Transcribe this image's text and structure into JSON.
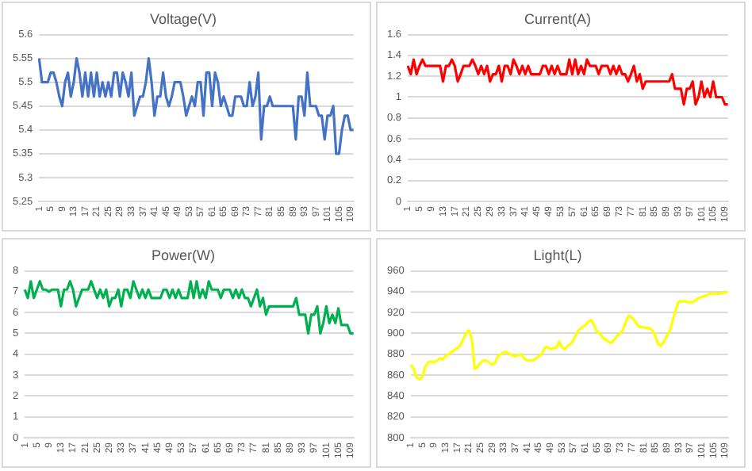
{
  "chart_data": [
    {
      "type": "line",
      "title": "Voltage(V)",
      "color": "#4472c4",
      "grid": "y",
      "ylim": [
        5.25,
        5.6
      ],
      "yticks": [
        5.25,
        5.3,
        5.35,
        5.4,
        5.45,
        5.5,
        5.55,
        5.6
      ],
      "categories": [
        "1",
        null,
        null,
        null,
        "5",
        null,
        null,
        null,
        "9",
        null,
        null,
        null,
        "13",
        null,
        null,
        null,
        "17",
        null,
        null,
        null,
        "21",
        null,
        null,
        null,
        "25",
        null,
        null,
        null,
        "29",
        null,
        null,
        null,
        "33",
        null,
        null,
        null,
        "37",
        null,
        null,
        null,
        "41",
        null,
        null,
        null,
        "45",
        null,
        null,
        null,
        "49",
        null,
        null,
        null,
        "53",
        null,
        null,
        null,
        "57",
        null,
        null,
        null,
        "61",
        null,
        null,
        null,
        "65",
        null,
        null,
        null,
        "69",
        null,
        null,
        null,
        "73",
        null,
        null,
        null,
        "77",
        null,
        null,
        null,
        "81",
        null,
        null,
        null,
        "85",
        null,
        null,
        null,
        "89",
        null,
        null,
        null,
        "93",
        null,
        null,
        null,
        "97",
        null,
        null,
        null,
        "101",
        null,
        null,
        null,
        "105",
        null,
        null,
        null,
        "109",
        null
      ],
      "values": [
        5.55,
        5.5,
        5.5,
        5.5,
        5.52,
        5.52,
        5.5,
        5.47,
        5.45,
        5.5,
        5.52,
        5.47,
        5.5,
        5.55,
        5.52,
        5.47,
        5.52,
        5.47,
        5.52,
        5.47,
        5.52,
        5.47,
        5.5,
        5.47,
        5.5,
        5.47,
        5.52,
        5.52,
        5.47,
        5.52,
        5.5,
        5.47,
        5.52,
        5.43,
        5.45,
        5.47,
        5.47,
        5.5,
        5.55,
        5.5,
        5.43,
        5.47,
        5.47,
        5.52,
        5.47,
        5.45,
        5.47,
        5.5,
        5.5,
        5.5,
        5.47,
        5.43,
        5.45,
        5.47,
        5.45,
        5.5,
        5.5,
        5.43,
        5.52,
        5.52,
        5.45,
        5.52,
        5.5,
        5.45,
        5.47,
        5.45,
        5.43,
        5.43,
        5.47,
        5.47,
        5.47,
        5.45,
        5.45,
        5.5,
        5.45,
        5.47,
        5.52,
        5.38,
        5.45,
        5.45,
        5.47,
        5.45,
        5.45,
        5.45,
        5.45,
        5.45,
        5.45,
        5.45,
        5.45,
        5.38,
        5.47,
        5.47,
        5.43,
        5.52,
        5.45,
        5.45,
        5.45,
        5.43,
        5.43,
        5.38,
        5.43,
        5.43,
        5.45,
        5.35,
        5.35,
        5.4,
        5.43,
        5.43,
        5.4,
        5.4
      ]
    },
    {
      "type": "line",
      "title": "Current(A)",
      "color": "#ff0000",
      "grid": "y",
      "ylim": [
        0,
        1.6
      ],
      "yticks": [
        0,
        0.2,
        0.4,
        0.6,
        0.8,
        1,
        1.2,
        1.4,
        1.6
      ],
      "categories": [
        "1",
        null,
        null,
        null,
        "5",
        null,
        null,
        null,
        "9",
        null,
        null,
        null,
        "13",
        null,
        null,
        null,
        "17",
        null,
        null,
        null,
        "21",
        null,
        null,
        null,
        "25",
        null,
        null,
        null,
        "29",
        null,
        null,
        null,
        "33",
        null,
        null,
        null,
        "37",
        null,
        null,
        null,
        "41",
        null,
        null,
        null,
        "45",
        null,
        null,
        null,
        "49",
        null,
        null,
        null,
        "53",
        null,
        null,
        null,
        "57",
        null,
        null,
        null,
        "61",
        null,
        null,
        null,
        "65",
        null,
        null,
        null,
        "69",
        null,
        null,
        null,
        "73",
        null,
        null,
        null,
        "77",
        null,
        null,
        null,
        "81",
        null,
        null,
        null,
        "85",
        null,
        null,
        null,
        "89",
        null,
        null,
        null,
        "93",
        null,
        null,
        null,
        "97",
        null,
        null,
        null,
        "101",
        null,
        null,
        null,
        "105",
        null,
        null,
        null,
        "109",
        null
      ],
      "values": [
        1.3,
        1.22,
        1.36,
        1.22,
        1.3,
        1.36,
        1.3,
        1.3,
        1.3,
        1.3,
        1.3,
        1.3,
        1.15,
        1.3,
        1.3,
        1.36,
        1.3,
        1.15,
        1.22,
        1.3,
        1.3,
        1.3,
        1.36,
        1.3,
        1.22,
        1.3,
        1.22,
        1.3,
        1.15,
        1.22,
        1.22,
        1.3,
        1.15,
        1.3,
        1.3,
        1.22,
        1.36,
        1.3,
        1.22,
        1.3,
        1.22,
        1.3,
        1.22,
        1.22,
        1.22,
        1.22,
        1.3,
        1.3,
        1.22,
        1.3,
        1.22,
        1.3,
        1.22,
        1.22,
        1.22,
        1.36,
        1.22,
        1.36,
        1.22,
        1.3,
        1.22,
        1.36,
        1.3,
        1.3,
        1.3,
        1.22,
        1.3,
        1.3,
        1.3,
        1.22,
        1.3,
        1.22,
        1.3,
        1.22,
        1.22,
        1.15,
        1.22,
        1.3,
        1.15,
        1.22,
        1.08,
        1.15,
        1.15,
        1.15,
        1.15,
        1.15,
        1.15,
        1.15,
        1.15,
        1.15,
        1.22,
        1.08,
        1.08,
        1.08,
        0.93,
        1.08,
        1.08,
        1.15,
        0.93,
        1.0,
        1.15,
        1.0,
        1.08,
        1.0,
        1.15,
        1.0,
        1.0,
        1.0,
        0.93,
        0.93
      ]
    },
    {
      "type": "line",
      "title": "Power(W)",
      "color": "#00b050",
      "grid": "y",
      "ylim": [
        0,
        8
      ],
      "yticks": [
        0,
        1,
        2,
        3,
        4,
        5,
        6,
        7,
        8
      ],
      "categories": [
        "1",
        null,
        null,
        null,
        "5",
        null,
        null,
        null,
        "9",
        null,
        null,
        null,
        "13",
        null,
        null,
        null,
        "17",
        null,
        null,
        null,
        "21",
        null,
        null,
        null,
        "25",
        null,
        null,
        null,
        "29",
        null,
        null,
        null,
        "33",
        null,
        null,
        null,
        "37",
        null,
        null,
        null,
        "41",
        null,
        null,
        null,
        "45",
        null,
        null,
        null,
        "49",
        null,
        null,
        null,
        "53",
        null,
        null,
        null,
        "57",
        null,
        null,
        null,
        "61",
        null,
        null,
        null,
        "65",
        null,
        null,
        null,
        "69",
        null,
        null,
        null,
        "73",
        null,
        null,
        null,
        "77",
        null,
        null,
        null,
        "81",
        null,
        null,
        null,
        "85",
        null,
        null,
        null,
        "89",
        null,
        null,
        null,
        "93",
        null,
        null,
        null,
        "97",
        null,
        null,
        null,
        "101",
        null,
        null,
        null,
        "105",
        null,
        null,
        null,
        "109",
        null
      ],
      "values": [
        7.1,
        6.7,
        7.5,
        6.7,
        7.1,
        7.5,
        7.1,
        7.1,
        7.0,
        7.1,
        7.1,
        7.1,
        6.3,
        7.1,
        7.1,
        7.5,
        7.1,
        6.3,
        6.7,
        7.1,
        7.1,
        7.1,
        7.5,
        7.1,
        6.7,
        7.1,
        6.7,
        7.1,
        6.3,
        6.7,
        6.7,
        7.1,
        6.3,
        7.1,
        7.1,
        6.7,
        7.5,
        7.1,
        6.7,
        7.1,
        6.7,
        7.1,
        6.7,
        6.7,
        6.7,
        6.7,
        7.1,
        7.1,
        6.7,
        7.1,
        6.7,
        7.1,
        6.7,
        6.7,
        6.7,
        7.5,
        6.7,
        7.5,
        6.7,
        7.1,
        6.7,
        7.5,
        7.1,
        7.1,
        7.1,
        6.7,
        7.1,
        7.1,
        7.1,
        6.7,
        7.1,
        6.7,
        7.1,
        6.7,
        6.7,
        6.3,
        6.7,
        7.1,
        6.3,
        6.7,
        5.9,
        6.3,
        6.3,
        6.3,
        6.3,
        6.3,
        6.3,
        6.3,
        6.3,
        6.3,
        6.7,
        5.9,
        5.9,
        5.9,
        5.0,
        5.9,
        5.9,
        6.3,
        5.0,
        5.5,
        6.3,
        5.5,
        5.9,
        5.5,
        6.2,
        5.4,
        5.4,
        5.4,
        5.0,
        5.0
      ]
    },
    {
      "type": "line",
      "title": "Light(L)",
      "color": "#ffff00",
      "grid": "y",
      "ylim": [
        800,
        960
      ],
      "yticks": [
        800,
        820,
        840,
        860,
        880,
        900,
        920,
        940,
        960
      ],
      "categories": [
        "1",
        null,
        null,
        null,
        "5",
        null,
        null,
        null,
        "9",
        null,
        null,
        null,
        "13",
        null,
        null,
        null,
        "17",
        null,
        null,
        null,
        "21",
        null,
        null,
        null,
        "25",
        null,
        null,
        null,
        "29",
        null,
        null,
        null,
        "33",
        null,
        null,
        null,
        "37",
        null,
        null,
        null,
        "41",
        null,
        null,
        null,
        "45",
        null,
        null,
        null,
        "49",
        null,
        null,
        null,
        "53",
        null,
        null,
        null,
        "57",
        null,
        null,
        null,
        "61",
        null,
        null,
        null,
        "65",
        null,
        null,
        null,
        "69",
        null,
        null,
        null,
        "73",
        null,
        null,
        null,
        "77",
        null,
        null,
        null,
        "81",
        null,
        null,
        null,
        "85",
        null,
        null,
        null,
        "89",
        null,
        null,
        null,
        "93",
        null,
        null,
        null,
        "97",
        null,
        null,
        null,
        "101",
        null,
        null,
        null,
        "105",
        null,
        null,
        null,
        "109",
        null
      ],
      "values": [
        870,
        866,
        858,
        856,
        858,
        868,
        872,
        873,
        872,
        874,
        876,
        875,
        878,
        880,
        882,
        884,
        886,
        888,
        894,
        900,
        903,
        895,
        866,
        868,
        872,
        874,
        874,
        872,
        870,
        872,
        878,
        880,
        882,
        882,
        880,
        879,
        878,
        879,
        880,
        876,
        874,
        874,
        874,
        876,
        878,
        880,
        886,
        887,
        885,
        886,
        886,
        892,
        887,
        885,
        888,
        890,
        894,
        900,
        904,
        906,
        908,
        911,
        913,
        908,
        902,
        900,
        896,
        894,
        892,
        891,
        894,
        898,
        900,
        904,
        912,
        917,
        915,
        912,
        908,
        906,
        906,
        905,
        905,
        903,
        898,
        890,
        888,
        892,
        898,
        902,
        912,
        922,
        930,
        931,
        931,
        930,
        930,
        930,
        932,
        934,
        935,
        936,
        937,
        938,
        938,
        938,
        938,
        939,
        939,
        940
      ]
    }
  ]
}
